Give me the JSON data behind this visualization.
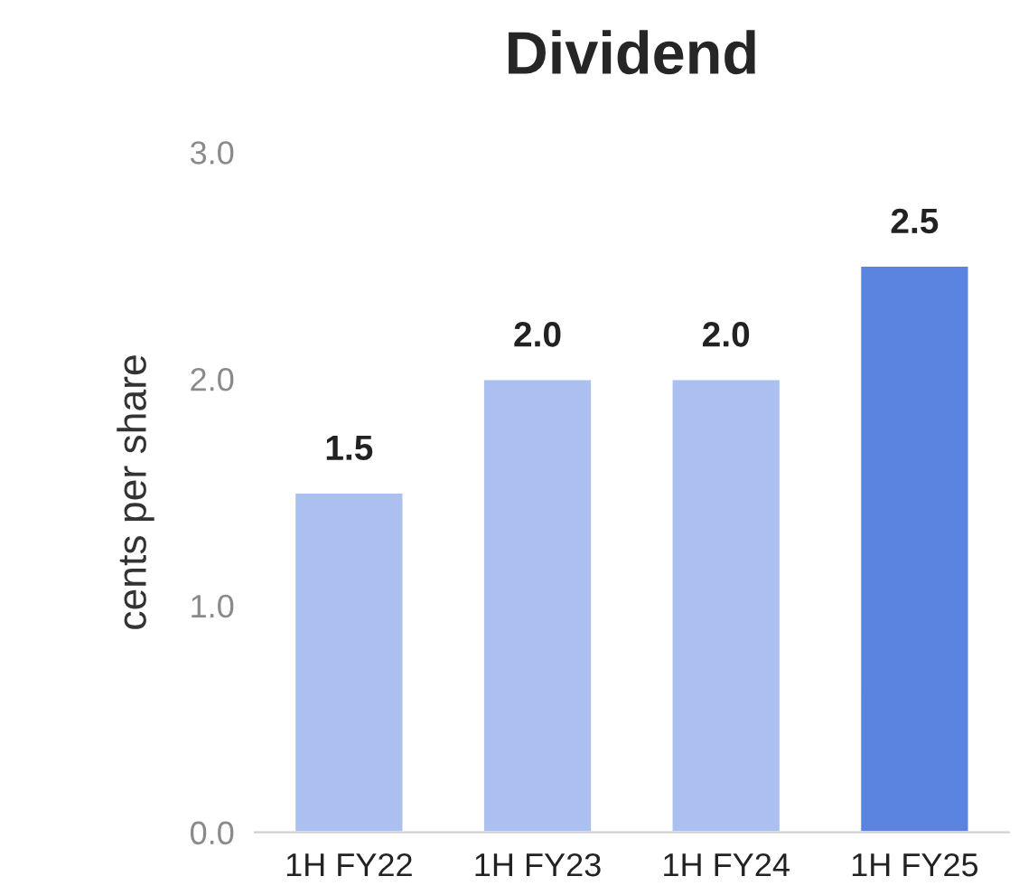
{
  "chart_data": {
    "type": "bar",
    "title": "Dividend",
    "ylabel": "cents per share",
    "categories": [
      "1H FY22",
      "1H FY23",
      "1H FY24",
      "1H FY25"
    ],
    "values": [
      1.5,
      2.0,
      2.0,
      2.5
    ],
    "colors": [
      "#abbff0",
      "#abbff0",
      "#abbff0",
      "#5b83e0"
    ],
    "ylim": [
      0,
      3.0
    ],
    "yticks": [
      {
        "value": 0,
        "label": "0.0"
      },
      {
        "value": 1.0,
        "label": "1.0"
      },
      {
        "value": 2.0,
        "label": "2.0"
      },
      {
        "value": 3.0,
        "label": "3.0"
      }
    ],
    "value_labels": [
      "1.5",
      "2.0",
      "2.0",
      "2.5"
    ],
    "grid": false,
    "legend": false
  }
}
